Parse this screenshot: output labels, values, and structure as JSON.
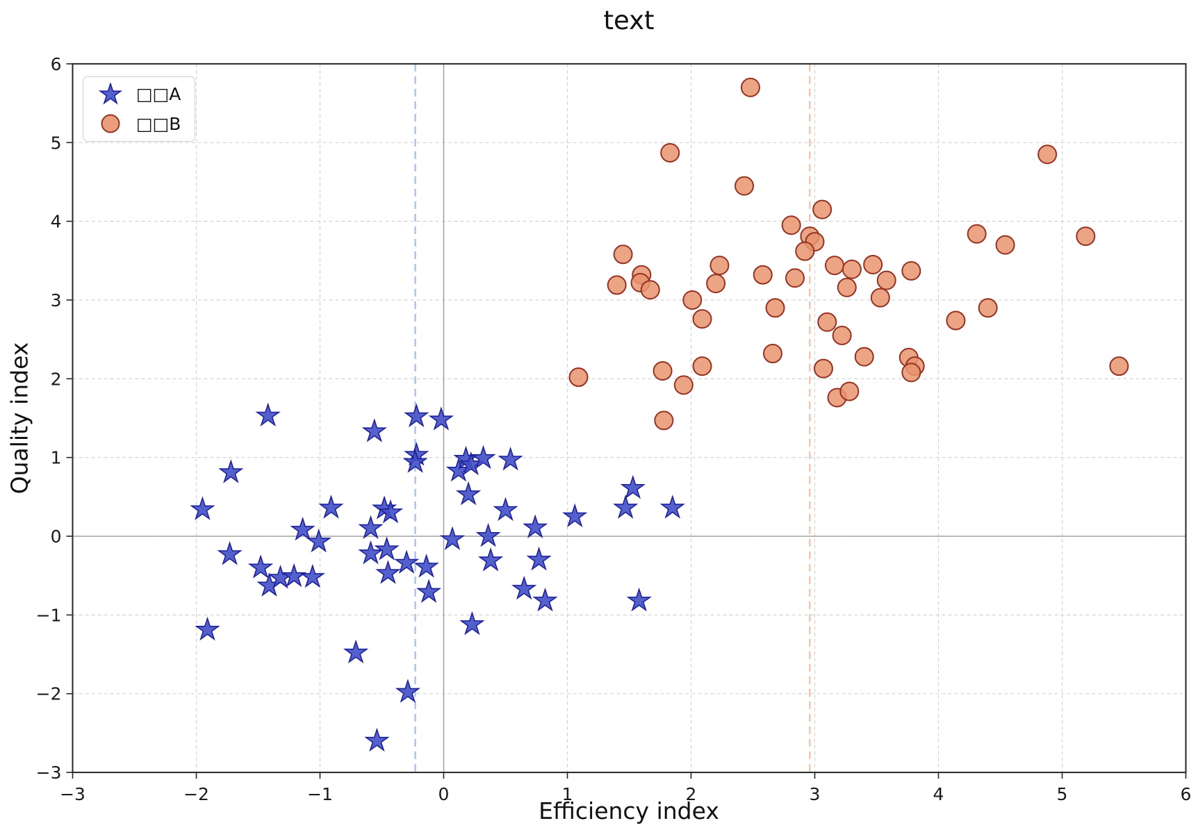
{
  "title": "text",
  "axes": {
    "xlabel": "Efficiency index",
    "ylabel": "Quality index",
    "x_tick_labels": [
      "−3",
      "−2",
      "−1",
      "0",
      "1",
      "2",
      "3",
      "4",
      "5",
      "6"
    ],
    "y_tick_labels": [
      "−3",
      "−2",
      "−1",
      "0",
      "1",
      "2",
      "3",
      "4",
      "5",
      "6"
    ]
  },
  "legend": {
    "items": [
      {
        "label": "□□A",
        "marker": "star"
      },
      {
        "label": "□□B",
        "marker": "circle"
      }
    ]
  },
  "colors": {
    "series_a_fill": "#4150c8",
    "series_a_edge": "#1e2296",
    "series_b_fill": "#e8946e",
    "series_b_edge": "#963222",
    "grid": "#cfcfcf",
    "zero_line": "#9b9b9b",
    "vline_a": "#a9c1ee",
    "vline_b": "#f3c3a9",
    "spine": "#262626"
  },
  "chart_data": {
    "type": "scatter",
    "title": "text",
    "xlabel": "Efficiency index",
    "ylabel": "Quality index",
    "xlim": [
      -3,
      6
    ],
    "ylim": [
      -3,
      6
    ],
    "x_ticks": [
      -3,
      -2,
      -1,
      0,
      1,
      2,
      3,
      4,
      5,
      6
    ],
    "y_ticks": [
      -3,
      -2,
      -1,
      0,
      1,
      2,
      3,
      4,
      5,
      6
    ],
    "grid": true,
    "legend_position": "upper left",
    "series": [
      {
        "name": "□□A",
        "marker": "star",
        "fill": "#4150c8",
        "edge": "#1e2296",
        "points": [
          [
            -1.42,
            1.53
          ],
          [
            -0.56,
            1.33
          ],
          [
            -0.22,
            1.52
          ],
          [
            -0.02,
            1.48
          ],
          [
            -0.22,
            1.03
          ],
          [
            -0.23,
            0.94
          ],
          [
            -1.72,
            0.81
          ],
          [
            -1.95,
            0.34
          ],
          [
            -0.91,
            0.36
          ],
          [
            -0.48,
            0.35
          ],
          [
            -0.43,
            0.3
          ],
          [
            -1.14,
            0.08
          ],
          [
            -0.59,
            0.1
          ],
          [
            -1.01,
            -0.07
          ],
          [
            -1.73,
            -0.23
          ],
          [
            -0.59,
            -0.22
          ],
          [
            -0.46,
            -0.17
          ],
          [
            -0.3,
            -0.34
          ],
          [
            -0.14,
            -0.39
          ],
          [
            -1.48,
            -0.4
          ],
          [
            -1.41,
            -0.63
          ],
          [
            -1.32,
            -0.53
          ],
          [
            -1.21,
            -0.51
          ],
          [
            -1.06,
            -0.52
          ],
          [
            -0.45,
            -0.47
          ],
          [
            -0.12,
            -0.71
          ],
          [
            -1.91,
            -1.19
          ],
          [
            -0.71,
            -1.48
          ],
          [
            -0.29,
            -1.98
          ],
          [
            -0.54,
            -2.6
          ],
          [
            0.07,
            -0.04
          ],
          [
            0.12,
            0.83
          ],
          [
            0.18,
            0.98
          ],
          [
            0.22,
            0.91
          ],
          [
            0.32,
            0.99
          ],
          [
            0.54,
            0.97
          ],
          [
            0.2,
            0.53
          ],
          [
            0.5,
            0.33
          ],
          [
            1.06,
            0.25
          ],
          [
            1.53,
            0.61
          ],
          [
            1.47,
            0.36
          ],
          [
            1.85,
            0.36
          ],
          [
            0.74,
            0.11
          ],
          [
            0.36,
            0.0
          ],
          [
            0.38,
            -0.31
          ],
          [
            0.77,
            -0.3
          ],
          [
            0.65,
            -0.67
          ],
          [
            0.82,
            -0.82
          ],
          [
            1.58,
            -0.82
          ],
          [
            0.23,
            -1.12
          ]
        ]
      },
      {
        "name": "□□B",
        "marker": "circle",
        "fill": "#e8946e",
        "edge": "#963222",
        "points": [
          [
            2.48,
            5.7
          ],
          [
            1.83,
            4.87
          ],
          [
            2.43,
            4.45
          ],
          [
            3.06,
            4.15
          ],
          [
            4.88,
            4.85
          ],
          [
            2.81,
            3.95
          ],
          [
            2.96,
            3.81
          ],
          [
            3.0,
            3.74
          ],
          [
            2.92,
            3.62
          ],
          [
            1.45,
            3.58
          ],
          [
            2.23,
            3.44
          ],
          [
            3.16,
            3.44
          ],
          [
            3.3,
            3.39
          ],
          [
            3.47,
            3.45
          ],
          [
            4.31,
            3.84
          ],
          [
            4.54,
            3.7
          ],
          [
            5.19,
            3.81
          ],
          [
            1.6,
            3.32
          ],
          [
            1.59,
            3.22
          ],
          [
            1.4,
            3.19
          ],
          [
            1.67,
            3.13
          ],
          [
            2.58,
            3.32
          ],
          [
            2.84,
            3.28
          ],
          [
            3.78,
            3.37
          ],
          [
            3.58,
            3.25
          ],
          [
            3.26,
            3.16
          ],
          [
            2.2,
            3.21
          ],
          [
            3.53,
            3.03
          ],
          [
            2.01,
            3.0
          ],
          [
            2.68,
            2.9
          ],
          [
            2.09,
            2.76
          ],
          [
            3.1,
            2.72
          ],
          [
            3.22,
            2.55
          ],
          [
            4.4,
            2.9
          ],
          [
            4.14,
            2.74
          ],
          [
            2.66,
            2.32
          ],
          [
            1.09,
            2.02
          ],
          [
            1.77,
            2.1
          ],
          [
            2.09,
            2.16
          ],
          [
            1.94,
            1.92
          ],
          [
            1.78,
            1.47
          ],
          [
            3.07,
            2.13
          ],
          [
            3.4,
            2.28
          ],
          [
            3.18,
            1.76
          ],
          [
            3.28,
            1.84
          ],
          [
            3.76,
            2.27
          ],
          [
            3.81,
            2.16
          ],
          [
            3.78,
            2.08
          ],
          [
            5.46,
            2.16
          ]
        ]
      }
    ],
    "vlines": [
      {
        "x": -0.23,
        "color": "#a9c1ee",
        "style": "dashed"
      },
      {
        "x": 2.96,
        "color": "#f3c3a9",
        "style": "dashed"
      }
    ]
  }
}
